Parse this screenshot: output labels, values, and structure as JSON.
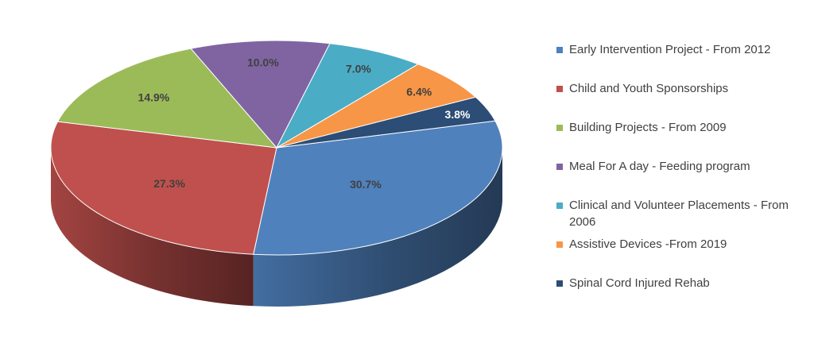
{
  "chart_data": {
    "type": "pie",
    "title": "",
    "three_d": true,
    "data_labels": "percent",
    "legend_position": "right",
    "categories": [
      "Early Intervention Project - From 2012",
      "Child and Youth Sponsorships",
      "Building Projects - From 2009",
      "Meal For A day - Feeding program",
      "Clinical and Volunteer Placements - From 2006",
      "Assistive Devices -From 2019",
      "Spinal Cord Injured Rehab"
    ],
    "values": [
      30.7,
      27.3,
      14.9,
      10.0,
      7.0,
      6.4,
      3.8
    ],
    "labels": [
      "30.7%",
      "27.3%",
      "14.9%",
      "10.0%",
      "7.0%",
      "6.4%",
      "3.8%"
    ],
    "colors": [
      "#4F81BD",
      "#C0504D",
      "#9BBB59",
      "#8064A2",
      "#4BACC6",
      "#F79646",
      "#2C4D75"
    ],
    "label_colors": [
      "#404040",
      "#404040",
      "#404040",
      "#404040",
      "#404040",
      "#404040",
      "#ffffff"
    ]
  }
}
